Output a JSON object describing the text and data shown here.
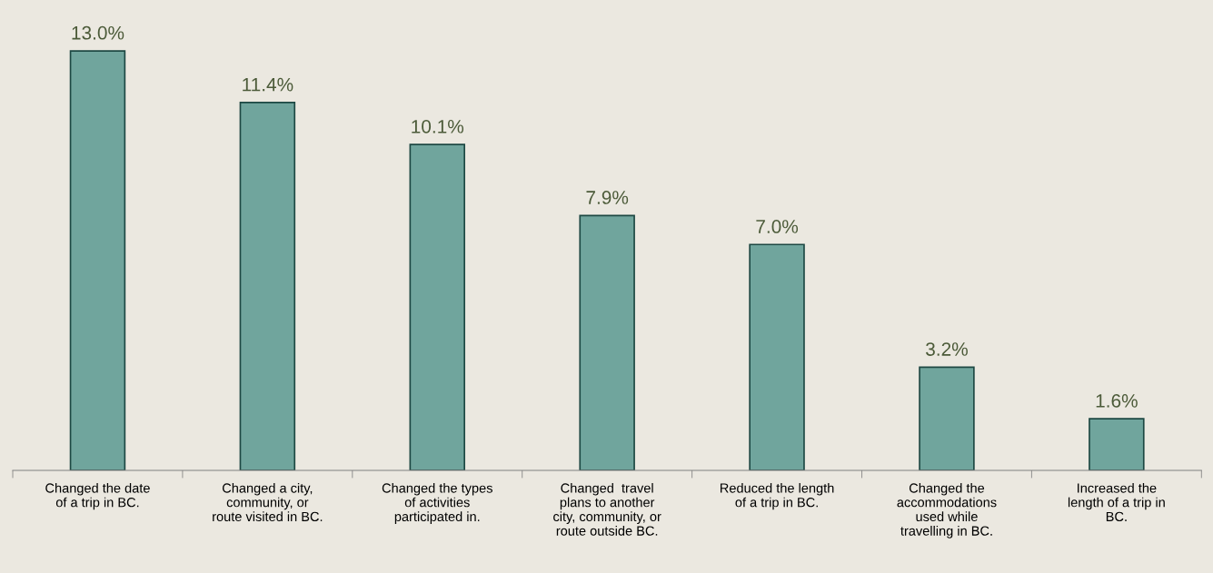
{
  "chart_data": {
    "type": "bar",
    "categories": [
      "Changed the date\nof a trip in BC.",
      "Changed a city,\ncommunity, or\nroute visited in BC.",
      "Changed the types\nof activities\nparticipated in.",
      "Changed  travel\nplans to another\ncity, community, or\nroute outside BC.",
      "Reduced the length\nof a trip in BC.",
      "Changed the\naccommodations\nused while\ntravelling in BC.",
      "Increased the\nlength of a trip in\nBC."
    ],
    "values": [
      13.0,
      11.4,
      10.1,
      7.9,
      7.0,
      3.2,
      1.6
    ],
    "value_labels": [
      "13.0%",
      "11.4%",
      "10.1%",
      "7.9%",
      "7.0%",
      "3.2%",
      "1.6%"
    ],
    "color": "#70a59d",
    "grid": false,
    "legend": false
  }
}
